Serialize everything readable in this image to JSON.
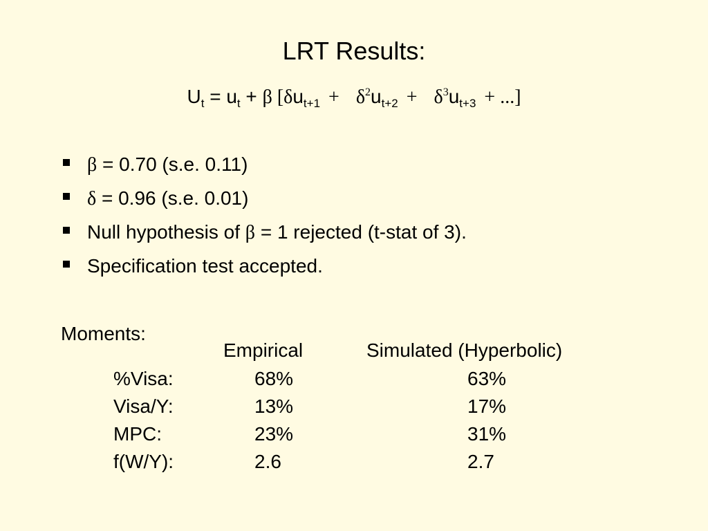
{
  "title": "LRT Results:",
  "equation": {
    "U": "U",
    "U_sub": "t",
    "eq1": " = u",
    "u_sub": "t",
    "plus_beta": " + ",
    "beta": "β",
    "open": " [",
    "delta1": "δ",
    "u1": "u",
    "u1_sub": "t+1",
    "plus1": "+",
    "delta2": "δ",
    "exp2": "2",
    "u2": "u",
    "u2_sub": "t+2",
    "plus2": "+",
    "delta3": "δ",
    "exp3": "3",
    "u3": "u",
    "u3_sub": "t+3",
    "tail": "+ ...]"
  },
  "bullets": [
    {
      "symbol": "β",
      "text": " = 0.70 (s.e. 0.11)"
    },
    {
      "symbol": "δ",
      "text": " = 0.96 (s.e. 0.01)"
    },
    {
      "prefix": "Null hypothesis of ",
      "symbol": "β",
      "text": " = 1 rejected (t-stat of 3)."
    },
    {
      "text": "Specification test accepted."
    }
  ],
  "moments": {
    "label": "Moments:",
    "columns": [
      "Empirical",
      "Simulated (Hyperbolic)"
    ],
    "rows": [
      {
        "label": "%Visa:",
        "empirical": "68%",
        "simulated": "63%"
      },
      {
        "label": "Visa/Y:",
        "empirical": "13%",
        "simulated": "17%"
      },
      {
        "label": "MPC:",
        "empirical": "23%",
        "simulated": "31%"
      },
      {
        "label": "f(W/Y):",
        "empirical": "2.6",
        "simulated": "2.7"
      }
    ]
  }
}
